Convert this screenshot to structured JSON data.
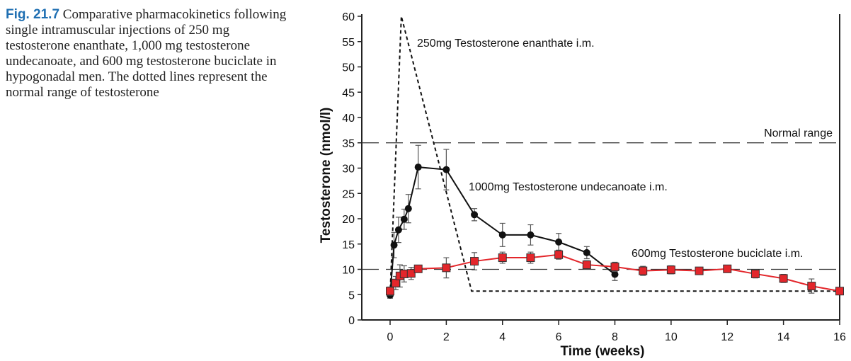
{
  "caption": {
    "label": "Fig. 21.7",
    "text": "Comparative pharmacokinetics following single intramuscular injections of 250 mg testosterone enanthate, 1,000 mg testosterone undecanoate, and 600 mg testosterone buciclate in hypogonadal men. The dotted lines represent the normal range of testosterone"
  },
  "chart_data": {
    "type": "line",
    "xlabel": "Time (weeks)",
    "ylabel": "Testosterone (nmol/l)",
    "xlim": [
      0,
      16
    ],
    "ylim": [
      0,
      60
    ],
    "xticks": [
      0,
      2,
      4,
      6,
      8,
      10,
      12,
      14,
      16
    ],
    "yticks": [
      0,
      5,
      10,
      15,
      20,
      25,
      30,
      35,
      40,
      45,
      50,
      55,
      60
    ],
    "grid": false,
    "reference_lines": [
      {
        "y": 35,
        "label": "Normal range"
      },
      {
        "y": 10,
        "label": ""
      }
    ],
    "series": [
      {
        "name": "250mg Testosterone enanthate i.m.",
        "style": "dotted",
        "color": "#111111",
        "x": [
          0,
          0.4,
          2.9,
          16
        ],
        "y": [
          5,
          60,
          5.7,
          5.7
        ]
      },
      {
        "name": "1000mg Testosterone undecanoate i.m.",
        "style": "solid-circle",
        "color": "#111111",
        "x": [
          0,
          0.14,
          0.3,
          0.5,
          0.65,
          1,
          2,
          3,
          4,
          5,
          6,
          7,
          8
        ],
        "y": [
          4.9,
          14.8,
          17.8,
          19.9,
          22,
          30.2,
          29.7,
          20.8,
          16.8,
          16.8,
          15.4,
          13.3,
          9
        ],
        "err": [
          0.6,
          2.5,
          2.5,
          2,
          2.8,
          4.3,
          4,
          1.2,
          2.3,
          2,
          1.7,
          1.2,
          1.2
        ]
      },
      {
        "name": "600mg Testosterone buciclate i.m.",
        "style": "solid-square",
        "color": "#e3262b",
        "x": [
          0,
          0.2,
          0.35,
          0.5,
          0.75,
          1,
          2,
          3,
          4,
          5,
          6,
          7,
          8,
          9,
          10,
          11,
          12,
          13,
          14,
          15,
          16
        ],
        "y": [
          5.7,
          7.3,
          8.7,
          9.1,
          9.2,
          10.1,
          10.3,
          11.6,
          12.3,
          12.3,
          12.9,
          10.9,
          10.5,
          9.7,
          9.9,
          9.7,
          10.1,
          9.1,
          8.2,
          6.7,
          5.7
        ],
        "err": [
          0.8,
          1.3,
          2.2,
          1.6,
          1.2,
          0.5,
          2,
          1.7,
          1.1,
          1.1,
          0.9,
          0.8,
          0.9,
          0.9,
          0.8,
          0.6,
          0.7,
          0.8,
          0.8,
          1.4,
          0.5
        ]
      }
    ]
  }
}
